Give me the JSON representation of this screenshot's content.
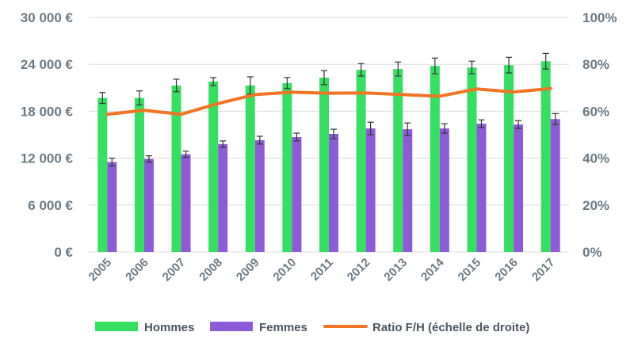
{
  "chart_data": {
    "type": "bar",
    "categories": [
      "2005",
      "2006",
      "2007",
      "2008",
      "2009",
      "2010",
      "2011",
      "2012",
      "2013",
      "2014",
      "2015",
      "2016",
      "2017"
    ],
    "series": [
      {
        "name": "Hommes",
        "type": "bar",
        "axis": "left",
        "color": "#35e060",
        "values": [
          19700,
          19700,
          21300,
          21800,
          21300,
          21600,
          22300,
          23300,
          23400,
          23800,
          23600,
          23900,
          24400
        ],
        "error": [
          700,
          900,
          800,
          500,
          1100,
          700,
          900,
          800,
          900,
          1000,
          800,
          1000,
          1000
        ]
      },
      {
        "name": "Femmes",
        "type": "bar",
        "axis": "left",
        "color": "#8e5bd8",
        "values": [
          11500,
          11900,
          12500,
          13800,
          14300,
          14700,
          15100,
          15800,
          15700,
          15800,
          16400,
          16300,
          17000
        ],
        "error": [
          500,
          400,
          400,
          400,
          500,
          500,
          600,
          800,
          800,
          600,
          500,
          500,
          700
        ]
      },
      {
        "name": "Ratio F/H (échelle de droite)",
        "type": "line",
        "axis": "right",
        "color": "#ef7424",
        "values": [
          0.587,
          0.604,
          0.587,
          0.633,
          0.671,
          0.681,
          0.677,
          0.678,
          0.671,
          0.664,
          0.695,
          0.682,
          0.697
        ]
      }
    ],
    "y_left": {
      "min": 0,
      "max": 30000,
      "ticks": [
        "0 €",
        "6 000 €",
        "12 000 €",
        "18 000 €",
        "24 000 €",
        "30 000 €"
      ]
    },
    "y_right": {
      "min": 0,
      "max": 1,
      "ticks": [
        "0%",
        "20%",
        "40%",
        "60%",
        "80%",
        "100%"
      ]
    },
    "title": "",
    "xlabel": "",
    "ylabel": "",
    "grid": true,
    "legend_position": "bottom"
  }
}
